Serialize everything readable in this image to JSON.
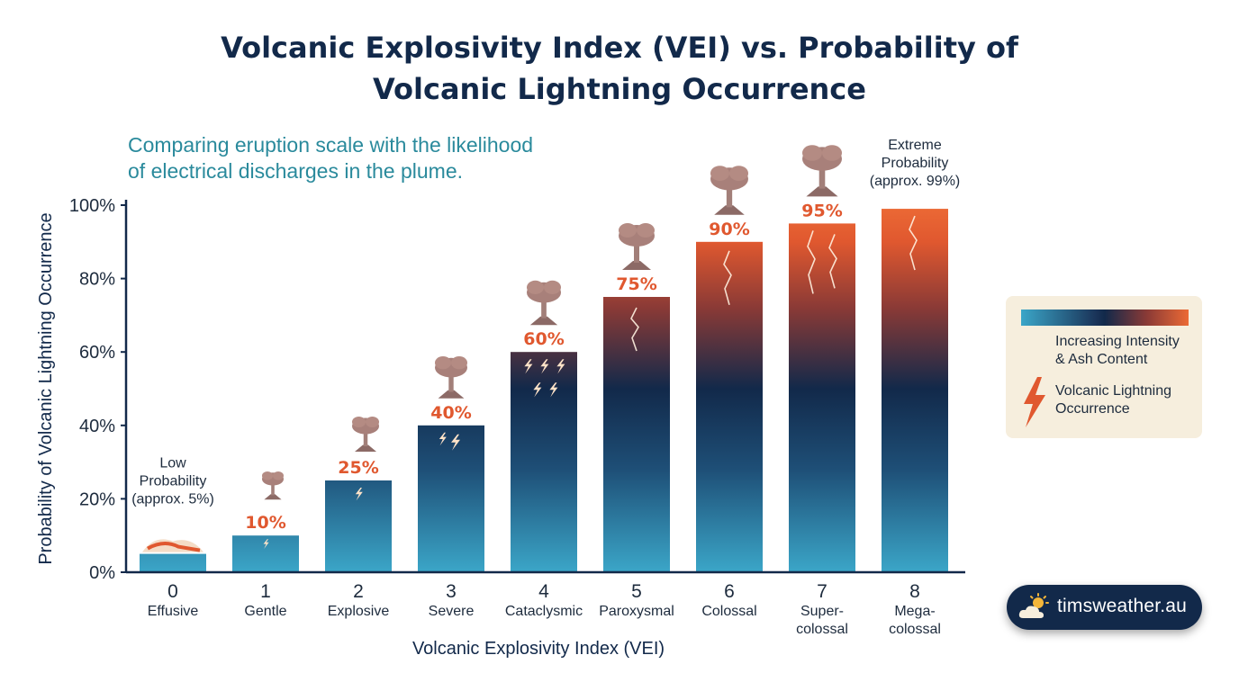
{
  "title_line1": "Volcanic Explosivity Index (VEI) vs. Probability of",
  "title_line2": "Volcanic Lightning Occurrence",
  "subtitle_line1": "Comparing eruption scale with the likelihood",
  "subtitle_line2": "of electrical discharges in the plume.",
  "chart_data": {
    "type": "bar",
    "title": "Volcanic Explosivity Index (VEI) vs. Probability of Volcanic Lightning Occurrence",
    "xlabel": "Volcanic Explosivity Index (VEI)",
    "ylabel": "Probability of Volcanic Lightning Occurrence",
    "ylim": [
      0,
      100
    ],
    "yticks": [
      "0%",
      "20%",
      "40%",
      "60%",
      "80%",
      "100%"
    ],
    "categories": [
      "0",
      "1",
      "2",
      "3",
      "4",
      "5",
      "6",
      "7",
      "8"
    ],
    "category_names": [
      [
        "Effusive"
      ],
      [
        "Gentle"
      ],
      [
        "Explosive"
      ],
      [
        "Severe"
      ],
      [
        "Cataclysmic"
      ],
      [
        "Paroxysmal"
      ],
      [
        "Colossal"
      ],
      [
        "Super-",
        "colossal"
      ],
      [
        "Mega-",
        "colossal"
      ]
    ],
    "values": [
      5,
      10,
      25,
      40,
      60,
      75,
      90,
      95,
      99
    ],
    "data_labels": [
      "",
      "10%",
      "25%",
      "40%",
      "60%",
      "75%",
      "90%",
      "95%",
      ""
    ],
    "annotations": [
      {
        "bar": 0,
        "lines": [
          "Low",
          "Probability",
          "(approx. 5%)"
        ]
      },
      {
        "bar": 8,
        "lines": [
          "Extreme",
          "Probability",
          "(approx. 99%)"
        ]
      }
    ],
    "grid": false,
    "legend_position": "right"
  },
  "legend": {
    "gradient_label_line1": "Increasing Intensity",
    "gradient_label_line2": "& Ash Content",
    "lightning_label_line1": "Volcanic Lightning",
    "lightning_label_line2": "Occurrence"
  },
  "brand": {
    "text": "timsweather.au",
    "icon": "sun-cloud-icon"
  },
  "colors": {
    "title": "#12294a",
    "subtitle": "#2a8a9c",
    "accent": "#e0582f",
    "bar_bottom": "#3ba6c8",
    "bar_mid": "#12294a",
    "bar_top": "#ec6a35",
    "legend_bg": "#f6eedd"
  }
}
